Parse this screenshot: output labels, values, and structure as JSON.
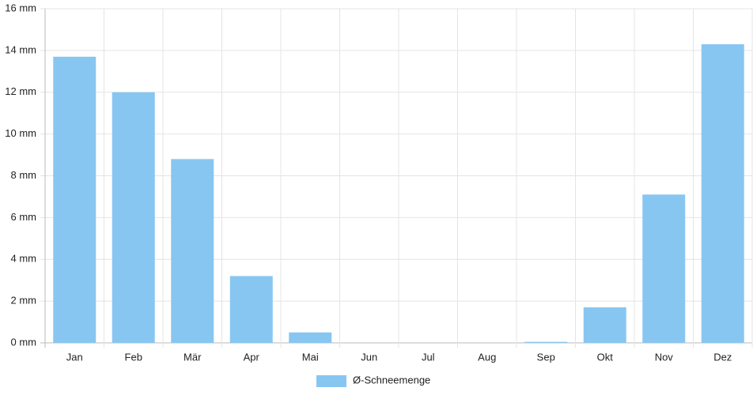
{
  "chart_data": {
    "type": "bar",
    "categories": [
      "Jan",
      "Feb",
      "Mär",
      "Apr",
      "Mai",
      "Jun",
      "Jul",
      "Aug",
      "Sep",
      "Okt",
      "Nov",
      "Dez"
    ],
    "series": [
      {
        "name": "Ø-Schneemenge",
        "color": "#88c6f2",
        "values": [
          13.7,
          12.0,
          8.8,
          3.2,
          0.5,
          0,
          0,
          0,
          0.05,
          1.7,
          7.1,
          14.3
        ]
      }
    ],
    "ylim": [
      0,
      16
    ],
    "yticks": [
      {
        "value": 0,
        "label": "0 mm"
      },
      {
        "value": 2,
        "label": "2 mm"
      },
      {
        "value": 4,
        "label": "4 mm"
      },
      {
        "value": 6,
        "label": "6 mm"
      },
      {
        "value": 8,
        "label": "8 mm"
      },
      {
        "value": 10,
        "label": "10 mm"
      },
      {
        "value": 12,
        "label": "12 mm"
      },
      {
        "value": 14,
        "label": "14 mm"
      },
      {
        "value": 16,
        "label": "16 mm"
      }
    ],
    "grid": true,
    "legend": "bottom"
  }
}
